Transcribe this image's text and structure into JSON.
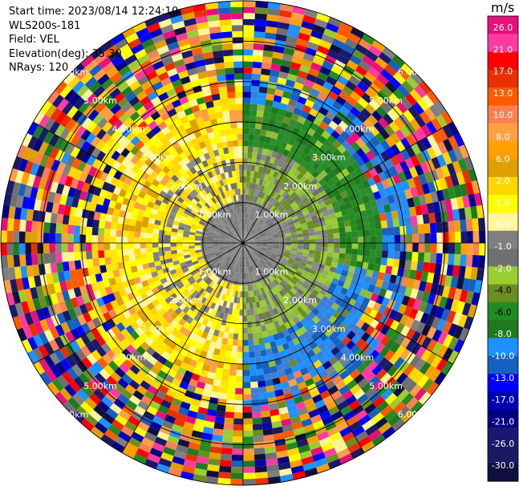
{
  "header": {
    "start_time": "Start time: 2023/08/14 12:24:10",
    "instrument": "WLS200s-181",
    "field": "Field: VEL",
    "elevation": "Elevation(deg): 35.30",
    "nrays": "NRays: 120"
  },
  "chart_data": {
    "type": "heatmap",
    "projection": "polar-ppi",
    "field": "VEL",
    "units": "m/s",
    "n_rays": 120,
    "elevation_deg": 35.3,
    "range_ring_labels": [
      "1.00km",
      "2.00km",
      "3.00km",
      "4.00km",
      "5.00km",
      "6.00km"
    ],
    "colorbar": {
      "unit_label": "m/s",
      "tick_labels": [
        "26.0",
        "21.0",
        "17.0",
        "13.0",
        "10.0",
        "8.0",
        "6.0",
        "2.0",
        "1.0",
        "0.0",
        "-1.0",
        "-2.0",
        "-4.0",
        "-6.0",
        "-8.0",
        "-10.0",
        "-13.0",
        "-17.0",
        "-21.0",
        "-26.0",
        "-30.0"
      ],
      "colors": [
        "#e8107a",
        "#ff3aa0",
        "#ff0000",
        "#e83000",
        "#ff5a00",
        "#ff7f50",
        "#ffa040",
        "#ff9f00",
        "#dfa000",
        "#ffd700",
        "#ffff00",
        "#fff59a",
        "#808080",
        "#707070",
        "#9acd32",
        "#6b8e23",
        "#228b22",
        "#1f7a1f",
        "#1e90ff",
        "#1560c0",
        "#0000ff",
        "#0000b4",
        "#000080",
        "#191970",
        "#1a1a60",
        "#101040"
      ]
    }
  }
}
